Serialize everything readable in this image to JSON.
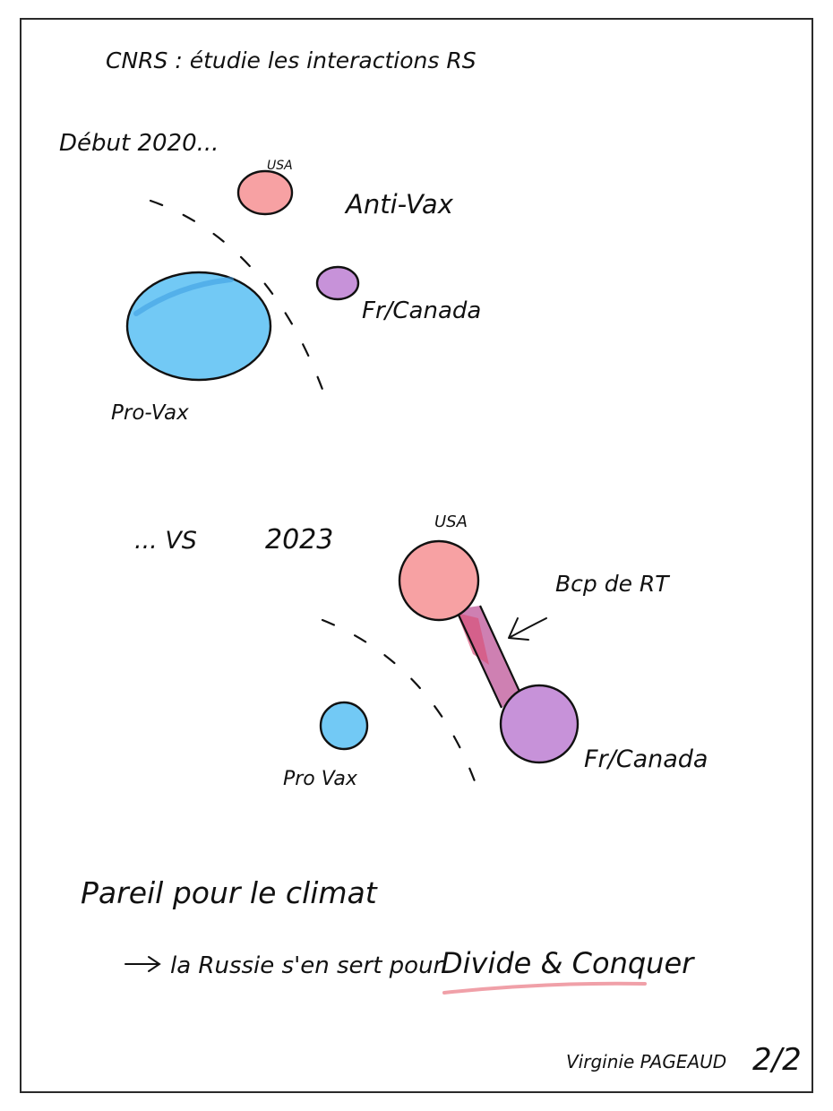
{
  "header": {
    "title": "CNRS : étudie les interactions RS"
  },
  "section_2020": {
    "label": "Début 2020...",
    "nodes": {
      "usa": "USA",
      "anti_vax": "Anti-Vax",
      "fr_canada": "Fr/Canada",
      "pro_vax": "Pro-Vax"
    }
  },
  "section_2023": {
    "label_vs": "... VS",
    "label_year": "2023",
    "nodes": {
      "usa": "USA",
      "fr_canada": "Fr/Canada",
      "pro_vax": "Pro Vax"
    },
    "annotation": "Bcp de RT"
  },
  "conclusion": {
    "line1": "Pareil pour le climat",
    "line2_prefix": "la Russie s'en sert pour",
    "line2_emphasis": "Divide & Conquer"
  },
  "signature": {
    "author": "Virginie PAGEAUD",
    "page": "2/2"
  },
  "colors": {
    "usa": "#f7a1a3",
    "fr_canada": "#c792d9",
    "pro_vax": "#72c9f5",
    "retweet_link": "#d9537a",
    "underline": "#f0a0a8",
    "ink": "#111111"
  }
}
